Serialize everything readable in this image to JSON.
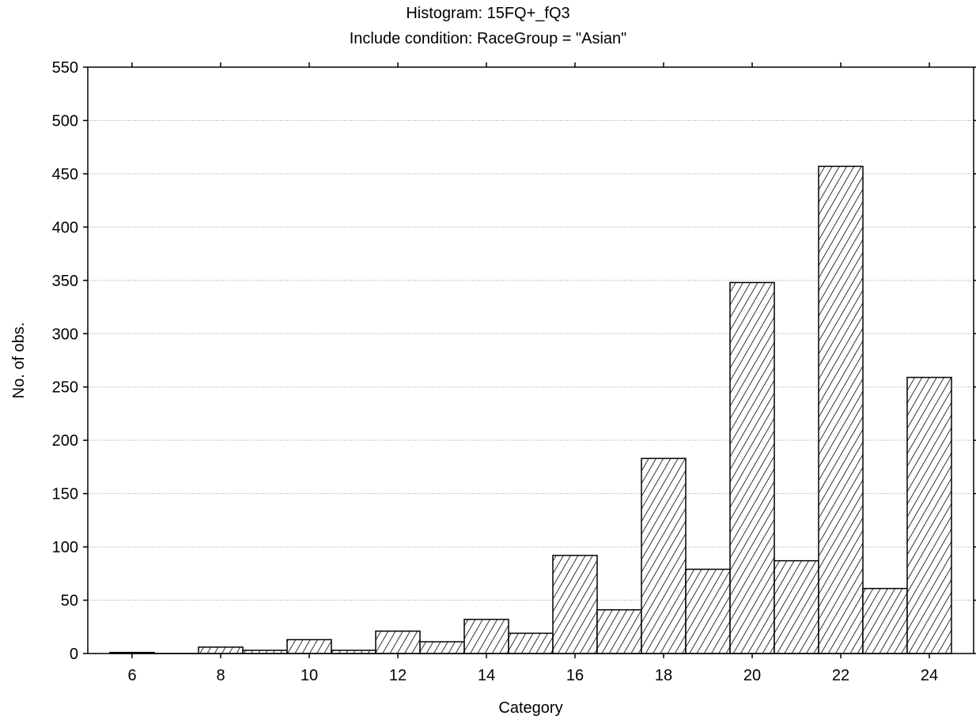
{
  "chart_data": {
    "type": "bar",
    "title": "Histogram: 15FQ+_fQ3",
    "subtitle": "Include condition: RaceGroup = \"Asian\"",
    "xlabel": "Category",
    "ylabel": "No. of obs.",
    "x_ticks": [
      "6",
      "8",
      "10",
      "12",
      "14",
      "16",
      "18",
      "20",
      "22",
      "24"
    ],
    "categories": [
      "6",
      "7",
      "8",
      "9",
      "10",
      "11",
      "12",
      "13",
      "14",
      "15",
      "16",
      "17",
      "18",
      "19",
      "20",
      "21",
      "22",
      "23",
      "24"
    ],
    "values": [
      1,
      0,
      6,
      3,
      13,
      3,
      21,
      11,
      32,
      19,
      92,
      41,
      183,
      79,
      348,
      87,
      457,
      61,
      259
    ],
    "ylim": [
      0,
      550
    ],
    "y_ticks": [
      0,
      50,
      100,
      150,
      200,
      250,
      300,
      350,
      400,
      450,
      500,
      550
    ],
    "grid": "horizontal dotted",
    "bar_fill": "diagonal hatch",
    "colors": {
      "bar_stroke": "#000000",
      "hatch": "#000000",
      "grid": "#9a9a9a",
      "background": "#ffffff"
    }
  }
}
